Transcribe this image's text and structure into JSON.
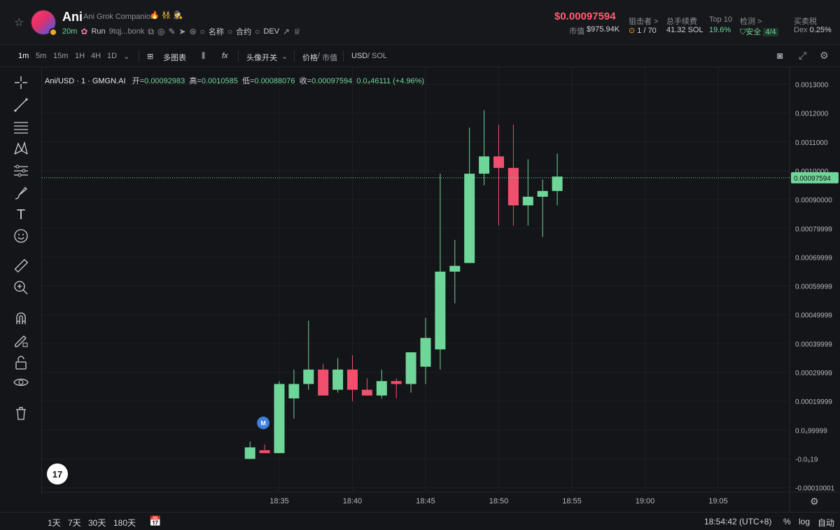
{
  "header": {
    "token_name": "Ani",
    "token_full_name": "Ani Grok Companion",
    "token_emoji": "🔥 👯 🕵",
    "age": "20m",
    "run_label": "Run",
    "address": "9tqj...bonk",
    "search_name_label": "名称",
    "search_contract_label": "合约",
    "dev_label": "DEV",
    "price": "$0.00097594",
    "market_cap_label": "市值",
    "market_cap_value": "$975.94K",
    "snipers_label": "狙击者 >",
    "snipers_value": "1 / 70",
    "fees_label": "总手续费",
    "fees_value": "41.32 SOL",
    "top10_label": "Top 10",
    "top10_value": "19.6%",
    "check_label": "检测 >",
    "check_safe": "安全",
    "check_value": "4/4",
    "tax_label": "买卖税",
    "tax_dex_label": "Dex",
    "tax_value": "0.25%"
  },
  "toolbar": {
    "intervals": [
      "1m",
      "5m",
      "15m",
      "1H",
      "4H",
      "1D"
    ],
    "active_interval": "1m",
    "multi_chart": "多图表",
    "avatar_toggle": "头像开关",
    "price_label": "价格",
    "mcap_label": "市值",
    "usd_label": "USD",
    "sol_label": "SOL"
  },
  "legend": {
    "symbol": "Ani/USD · 1 · GMGN.AI",
    "open_label": "开=",
    "open": "0.00092983",
    "high_label": "高=",
    "high": "0.0010585",
    "low_label": "低=",
    "low": "0.00088076",
    "close_label": "收=",
    "close": "0.00097594",
    "change": "0.0₄46111 (+4.96%)"
  },
  "chart_data": {
    "type": "candlestick",
    "y_ticks": [
      {
        "value": 0.0013,
        "label": "0.0013000"
      },
      {
        "value": 0.0012,
        "label": "0.0012000"
      },
      {
        "value": 0.0011,
        "label": "0.0011000"
      },
      {
        "value": 0.001,
        "label": "0.0010000"
      },
      {
        "value": 0.0009,
        "label": "0.00090000"
      },
      {
        "value": 0.0008,
        "label": "0.00079999"
      },
      {
        "value": 0.0007,
        "label": "0.00069999"
      },
      {
        "value": 0.0006,
        "label": "0.00059999"
      },
      {
        "value": 0.0005,
        "label": "0.00049999"
      },
      {
        "value": 0.0004,
        "label": "0.00039999"
      },
      {
        "value": 0.0003,
        "label": "0.00029999"
      },
      {
        "value": 0.0002,
        "label": "0.00019999"
      },
      {
        "value": 0.0001,
        "label": "0.0₄99999"
      },
      {
        "value": 0.0,
        "label": "-0.0₅19"
      },
      {
        "value": -0.0001,
        "label": "-0.00010001"
      }
    ],
    "x_ticks": [
      "18:35",
      "18:40",
      "18:45",
      "18:50",
      "18:55",
      "19:00",
      "19:05"
    ],
    "x_tick_minutes": [
      35,
      40,
      45,
      50,
      55,
      60,
      65
    ],
    "candles": [
      {
        "t": 33,
        "o": 0.0,
        "h": 6e-05,
        "l": 0.0,
        "c": 4e-05
      },
      {
        "t": 34,
        "o": 3e-05,
        "h": 5e-05,
        "l": 2e-05,
        "c": 2e-05
      },
      {
        "t": 35,
        "o": 2e-05,
        "h": 0.00027,
        "l": 2e-05,
        "c": 0.00026
      },
      {
        "t": 36,
        "o": 0.00021,
        "h": 0.00031,
        "l": 0.00014,
        "c": 0.00026
      },
      {
        "t": 37,
        "o": 0.00026,
        "h": 0.00048,
        "l": 0.00024,
        "c": 0.00031
      },
      {
        "t": 38,
        "o": 0.00031,
        "h": 0.00033,
        "l": 0.00022,
        "c": 0.00022
      },
      {
        "t": 39,
        "o": 0.00024,
        "h": 0.00035,
        "l": 0.00023,
        "c": 0.00031
      },
      {
        "t": 40,
        "o": 0.00031,
        "h": 0.00036,
        "l": 0.0002,
        "c": 0.00024
      },
      {
        "t": 41,
        "o": 0.00024,
        "h": 0.00028,
        "l": 0.00022,
        "c": 0.00022
      },
      {
        "t": 42,
        "o": 0.00022,
        "h": 0.00031,
        "l": 0.00021,
        "c": 0.00027
      },
      {
        "t": 43,
        "o": 0.00027,
        "h": 0.00028,
        "l": 0.00021,
        "c": 0.00026
      },
      {
        "t": 44,
        "o": 0.00026,
        "h": 0.00037,
        "l": 0.00023,
        "c": 0.00037
      },
      {
        "t": 45,
        "o": 0.00032,
        "h": 0.00049,
        "l": 0.00026,
        "c": 0.00042
      },
      {
        "t": 46,
        "o": 0.00038,
        "h": 0.00099,
        "l": 0.00031,
        "c": 0.00065
      },
      {
        "t": 47,
        "o": 0.00065,
        "h": 0.00076,
        "l": 0.00054,
        "c": 0.00067
      },
      {
        "t": 48,
        "o": 0.00068,
        "h": 0.00115,
        "l": 0.00068,
        "c": 0.00099
      },
      {
        "t": 49,
        "o": 0.00099,
        "h": 0.00121,
        "l": 0.00095,
        "c": 0.00105
      },
      {
        "t": 50,
        "o": 0.00105,
        "h": 0.00116,
        "l": 0.00081,
        "c": 0.00101
      },
      {
        "t": 51,
        "o": 0.00101,
        "h": 0.00116,
        "l": 0.00081,
        "c": 0.00088
      },
      {
        "t": 52,
        "o": 0.00088,
        "h": 0.00104,
        "l": 0.00081,
        "c": 0.00091
      },
      {
        "t": 53,
        "o": 0.00091,
        "h": 0.00097,
        "l": 0.00077,
        "c": 0.00093
      },
      {
        "t": 54,
        "o": 0.00093,
        "h": 0.00106,
        "l": 0.00088,
        "c": 0.00098
      }
    ],
    "last_price_label": "0.00097594",
    "last_price": 0.00097594,
    "marker_label": "M",
    "up_color": "#6fd69a",
    "down_color": "#f0506e"
  },
  "bottom": {
    "ranges": [
      "1天",
      "7天",
      "30天",
      "180天"
    ],
    "time": "18:54:42 (UTC+8)",
    "pct": "%",
    "log": "log",
    "auto": "自动"
  },
  "tools": [
    "crosshair-icon",
    "trendline-icon",
    "fib-icon",
    "pattern-icon",
    "measure-lines-icon",
    "brush-icon",
    "text-icon",
    "emoji-icon",
    "ruler-icon",
    "zoom-in-icon",
    "magnet-icon",
    "lock-draw-icon",
    "unlock-icon",
    "eye-icon",
    "trash-icon"
  ]
}
